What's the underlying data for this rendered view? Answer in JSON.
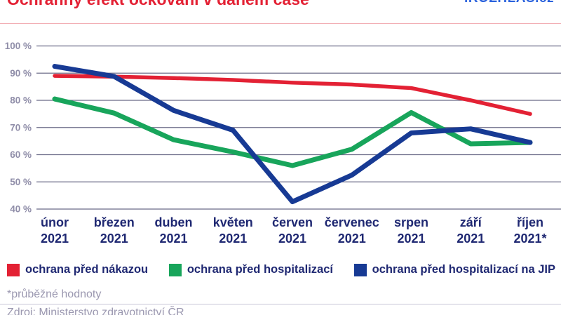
{
  "header": {
    "title": "Ochranný efekt očkování v daném čase",
    "logo": "iROZHLAS.cz"
  },
  "chart_data": {
    "type": "line",
    "title": "Ochranný efekt očkování v daném čase",
    "categories": [
      "únor",
      "březen",
      "duben",
      "květen",
      "červen",
      "červenec",
      "srpen",
      "září",
      "říjen"
    ],
    "category_sublabels": [
      "2021",
      "2021",
      "2021",
      "2021",
      "2021",
      "2021",
      "2021",
      "2021",
      "2021*"
    ],
    "y_ticks": [
      "100 %",
      "90 %",
      "80 %",
      "70 %",
      "60 %",
      "50 %",
      "40 %"
    ],
    "y_tick_values": [
      100,
      90,
      80,
      70,
      60,
      50,
      40
    ],
    "ylim": [
      40,
      100
    ],
    "grid": "horizontal",
    "legend_position": "bottom",
    "series": [
      {
        "id": "nakaza",
        "name": "ochrana před nákazou",
        "color": "#e32134",
        "values": [
          89,
          88.7,
          88.2,
          87.5,
          86.5,
          85.8,
          84.5,
          80,
          75
        ]
      },
      {
        "id": "hospitalizace",
        "name": "ochrana před hospitalizací",
        "color": "#18a55b",
        "values": [
          80.5,
          75.3,
          65.5,
          61,
          56,
          62,
          75.5,
          64,
          64.5
        ]
      },
      {
        "id": "hospitalizace-jip",
        "name": "ochrana před hospitalizací na JIP",
        "color": "#173a94",
        "values": [
          92.5,
          88.8,
          76.3,
          69,
          42.7,
          52.5,
          68,
          69.5,
          64.5
        ]
      }
    ]
  },
  "footer": {
    "note": "*průběžné hodnoty",
    "source": "Zdroj: Ministerstvo zdravotnictví ČR"
  }
}
